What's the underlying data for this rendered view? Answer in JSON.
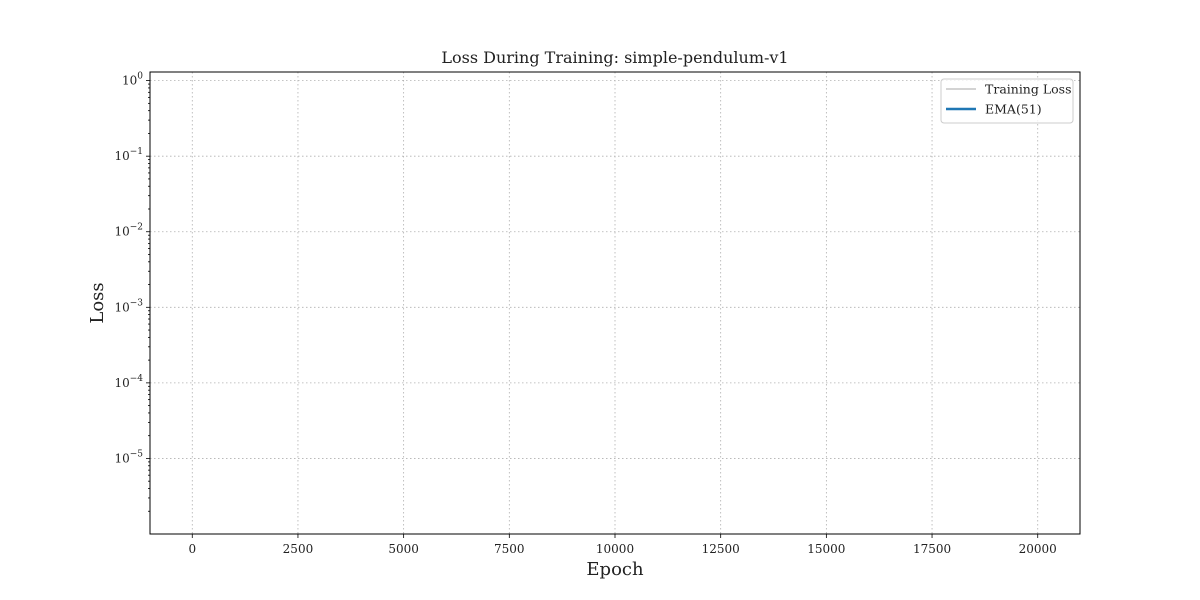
{
  "chart_data": {
    "type": "line",
    "title": "Loss During Training: simple-pendulum-v1",
    "xlabel": "Epoch",
    "ylabel": "Loss",
    "xscale": "linear",
    "yscale": "log",
    "xlim": [
      -1000,
      21000
    ],
    "ylim": [
      1e-06,
      1.3
    ],
    "xticks": [
      0,
      2500,
      5000,
      7500,
      10000,
      12500,
      15000,
      17500,
      20000
    ],
    "xtick_labels": [
      "0",
      "2500",
      "5000",
      "7500",
      "10000",
      "12500",
      "15000",
      "17500",
      "20000"
    ],
    "yticks": [
      1,
      0.1,
      0.01,
      0.001,
      0.0001,
      1e-05
    ],
    "ytick_labels": [
      {
        "base": "10",
        "exp": "0"
      },
      {
        "base": "10",
        "exp": "−1"
      },
      {
        "base": "10",
        "exp": "−2"
      },
      {
        "base": "10",
        "exp": "−3"
      },
      {
        "base": "10",
        "exp": "−4"
      },
      {
        "base": "10",
        "exp": "−5"
      }
    ],
    "grid": true,
    "legend_position": "upper-right",
    "series": [
      {
        "name": "Training Loss",
        "color": "#d3d3d3",
        "x": [],
        "y": []
      },
      {
        "name": "EMA(51)",
        "color": "#1f77b4",
        "x": [],
        "y": []
      }
    ]
  }
}
